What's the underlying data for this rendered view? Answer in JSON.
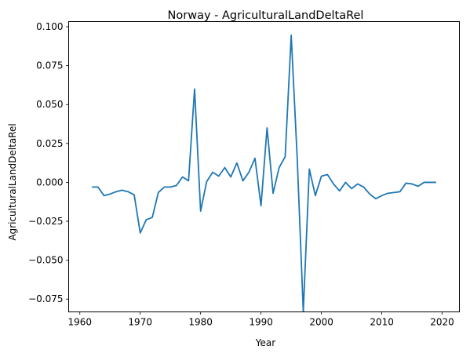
{
  "chart_data": {
    "type": "line",
    "title": "Norway - AgriculturalLandDeltaRel",
    "xlabel": "Year",
    "ylabel": "AgriculturalLandDeltaRel",
    "xlim": [
      1958.15,
      2022.85
    ],
    "ylim": [
      -0.0832,
      0.1033
    ],
    "xticks": [
      1960,
      1970,
      1980,
      1990,
      2000,
      2010,
      2020
    ],
    "xtick_labels": [
      "1960",
      "1970",
      "1980",
      "1990",
      "2000",
      "2010",
      "2020"
    ],
    "yticks": [
      -0.075,
      -0.05,
      -0.025,
      0.0,
      0.025,
      0.05,
      0.075,
      0.1
    ],
    "ytick_labels": [
      "−0.075",
      "−0.050",
      "−0.025",
      "0.000",
      "0.025",
      "0.050",
      "0.075",
      "0.100"
    ],
    "grid": false,
    "line_color": "#1f77b4",
    "series": [
      {
        "x": [
          1962,
          1963,
          1964,
          1965,
          1966,
          1967,
          1968,
          1969,
          1970,
          1971,
          1972,
          1973,
          1974,
          1975,
          1976,
          1977,
          1978,
          1979,
          1980,
          1981,
          1982,
          1983,
          1984,
          1985,
          1986,
          1987,
          1988,
          1989,
          1990,
          1991,
          1992,
          1993,
          1994,
          1995,
          1996,
          1997,
          1998,
          1999,
          2000,
          2001,
          2002,
          2003,
          2004,
          2005,
          2006,
          2007,
          2008,
          2009,
          2010,
          2011,
          2012,
          2013,
          2014,
          2015,
          2016,
          2017,
          2018,
          2019
        ],
        "values": [
          -0.003,
          -0.003,
          -0.0085,
          -0.0075,
          -0.006,
          -0.005,
          -0.006,
          -0.008,
          -0.0325,
          -0.024,
          -0.0225,
          -0.0065,
          -0.003,
          -0.003,
          -0.002,
          0.0035,
          0.001,
          0.06,
          -0.0185,
          0.0005,
          0.0065,
          0.004,
          0.0095,
          0.0035,
          0.0125,
          0.001,
          0.0065,
          0.0155,
          -0.015,
          0.035,
          -0.007,
          0.0095,
          0.0165,
          0.0945,
          0.015,
          -0.083,
          0.0085,
          -0.0085,
          0.004,
          0.005,
          -0.001,
          -0.0055,
          0.0,
          -0.004,
          -0.001,
          -0.003,
          -0.0075,
          -0.0105,
          -0.0085,
          -0.007,
          -0.0065,
          -0.006,
          -0.0005,
          -0.001,
          -0.0025,
          0.0,
          0.0,
          0.0
        ]
      }
    ]
  }
}
